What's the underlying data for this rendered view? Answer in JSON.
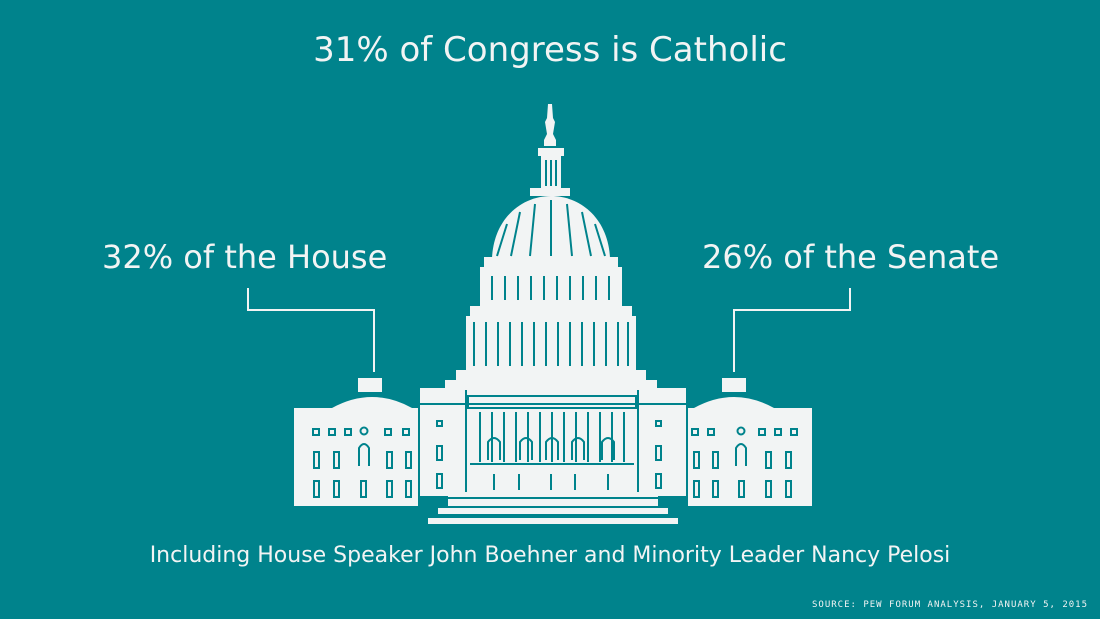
{
  "headline": "31% of Congress is Catholic",
  "house": {
    "label": "32% of the House"
  },
  "senate": {
    "label": "26% of the Senate"
  },
  "caption": "Including House Speaker John Boehner and Minority Leader Nancy Pelosi",
  "source": "SOURCE: PEW FORUM ANALYSIS, JANUARY 5, 2015",
  "colors": {
    "background": "#00838c",
    "foreground": "#f2f4f4"
  },
  "illustration": {
    "icon": "capitol-building-icon"
  }
}
